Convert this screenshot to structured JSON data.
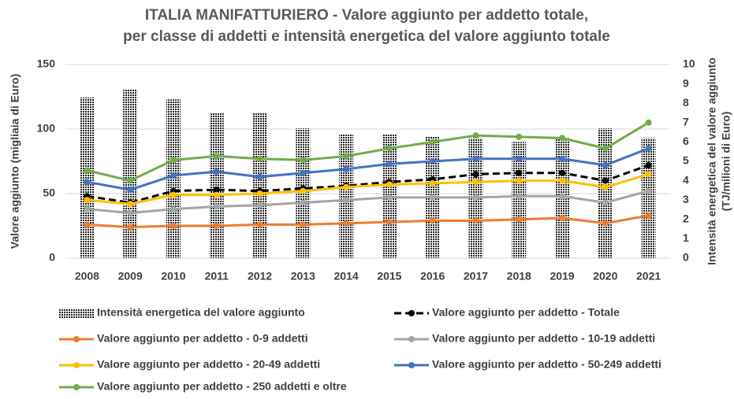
{
  "chart_data": {
    "type": "bar-line",
    "title": [
      "ITALIA MANIFATTURIERO - Valore aggiunto per addetto totale,",
      "per classe di addetti e intensità energetica del valore aggiunto totale"
    ],
    "y_label": "Valore aggiunto (migliaia di Euro)",
    "y2_label": [
      "Intensità energetica del valore aggiunto",
      "(TJ/milioni di Euro)"
    ],
    "categories": [
      "2008",
      "2009",
      "2010",
      "2011",
      "2012",
      "2013",
      "2014",
      "2015",
      "2016",
      "2017",
      "2018",
      "2019",
      "2020",
      "2021"
    ],
    "ylim": [
      0,
      150
    ],
    "yticks": [
      0,
      50,
      100,
      150
    ],
    "y2lim": [
      0,
      10
    ],
    "y2ticks": [
      0,
      1,
      2,
      3,
      4,
      5,
      6,
      7,
      8,
      9,
      10
    ],
    "grid": true,
    "series": [
      {
        "name": "Intensità energetica del valore aggiunto",
        "type": "bar",
        "axis": "y2",
        "color": "#000000",
        "values": [
          8.3,
          8.7,
          8.2,
          7.5,
          7.5,
          6.7,
          6.4,
          6.4,
          6.3,
          6.2,
          6.0,
          6.2,
          6.7,
          6.2
        ]
      },
      {
        "name": "Valore aggiunto per addetto - Totale",
        "type": "line",
        "dashed": true,
        "color": "#000000",
        "values": [
          48,
          43,
          52,
          53,
          52,
          54,
          56,
          59,
          61,
          65,
          66,
          66,
          60,
          72
        ]
      },
      {
        "name": "Valore aggiunto per addetto - 0-9 addetti",
        "type": "line",
        "color": "#ed7d31",
        "values": [
          26,
          24,
          25,
          25,
          26,
          26,
          27,
          28,
          29,
          29,
          30,
          31,
          27,
          33
        ]
      },
      {
        "name": "Valore aggiunto per addetto - 10-19 addetti",
        "type": "line",
        "color": "#a5a5a5",
        "values": [
          38,
          35,
          38,
          40,
          41,
          43,
          45,
          47,
          47,
          47,
          48,
          48,
          43,
          52
        ]
      },
      {
        "name": "Valore aggiunto per addetto - 20-49 addetti",
        "type": "line",
        "color": "#ffc000",
        "values": [
          45,
          42,
          49,
          49,
          50,
          52,
          55,
          57,
          58,
          59,
          60,
          60,
          55,
          65
        ]
      },
      {
        "name": "Valore aggiunto per addetto - 50-249 addetti",
        "type": "line",
        "color": "#4472c4",
        "values": [
          59,
          53,
          64,
          67,
          63,
          66,
          69,
          73,
          75,
          77,
          77,
          77,
          72,
          85
        ]
      },
      {
        "name": "Valore aggiunto per addetto - 250 addetti e oltre",
        "type": "line",
        "color": "#70ad47",
        "values": [
          68,
          60,
          76,
          79,
          77,
          76,
          79,
          85,
          90,
          95,
          94,
          93,
          85,
          105
        ]
      }
    ]
  }
}
